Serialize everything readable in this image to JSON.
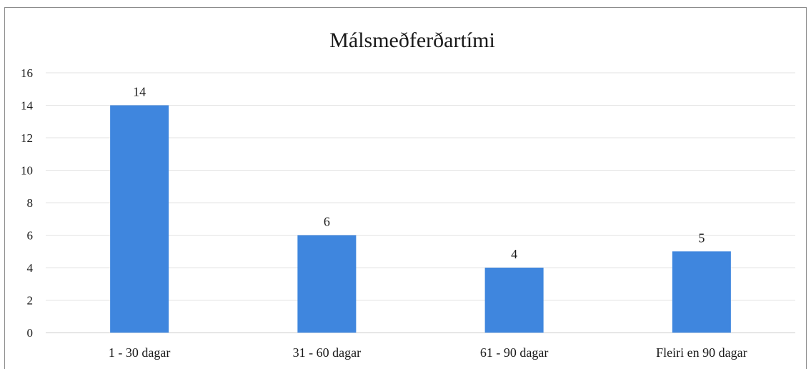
{
  "chart_data": {
    "type": "bar",
    "title": "Málsmeðferðartími",
    "xlabel": "",
    "ylabel": "",
    "categories": [
      "1 - 30 dagar",
      "31 - 60 dagar",
      "61 - 90 dagar",
      "Fleiri en 90 dagar"
    ],
    "values": [
      14,
      6,
      4,
      5
    ],
    "ylim": [
      0,
      16
    ],
    "yticks": [
      0,
      2,
      4,
      6,
      8,
      10,
      12,
      14,
      16
    ],
    "grid": true,
    "legend": "none",
    "bar_color": "#3f86de"
  }
}
